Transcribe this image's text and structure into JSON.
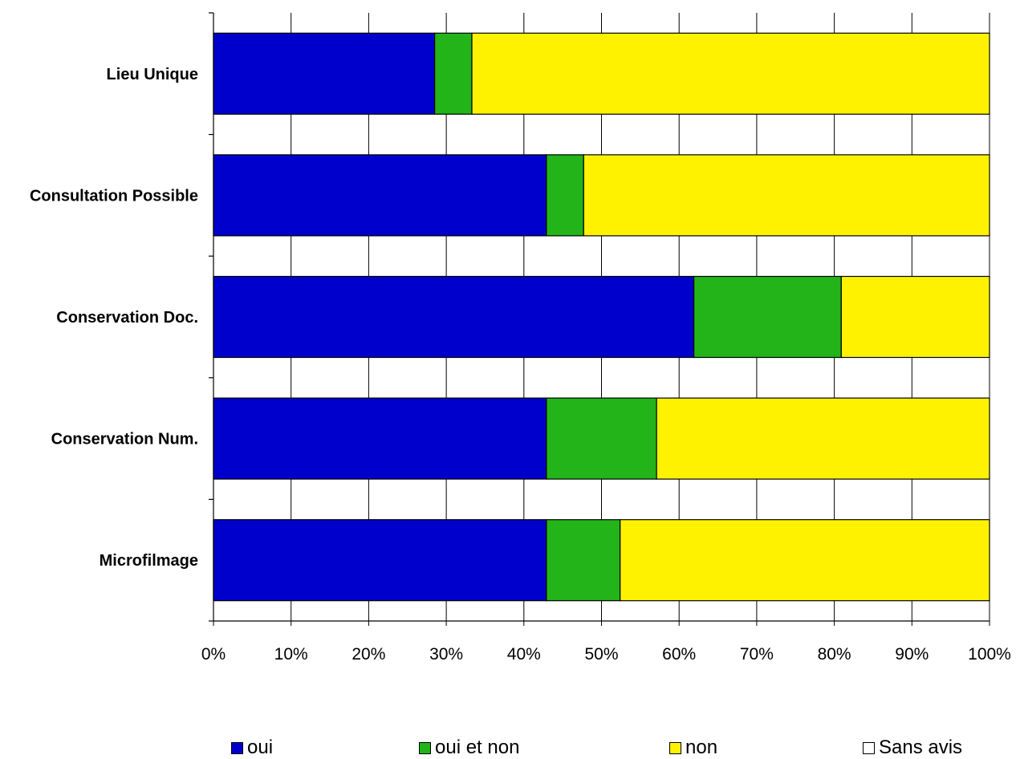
{
  "chart_data": {
    "type": "bar",
    "orientation": "horizontal",
    "stacked": "percent",
    "categories": [
      "Lieu Unique",
      "Consultation Possible",
      "Conservation Doc.",
      "Conservation Num.",
      "Microfilmage"
    ],
    "series": [
      {
        "name": "oui",
        "color": "#0000CC",
        "values": [
          28.5,
          42.9,
          61.9,
          42.9,
          42.9
        ]
      },
      {
        "name": "oui et non",
        "color": "#22B418",
        "values": [
          4.8,
          4.8,
          19.0,
          14.2,
          9.5
        ]
      },
      {
        "name": "non",
        "color": "#FFF200",
        "values": [
          66.7,
          52.3,
          19.1,
          42.9,
          47.6
        ]
      },
      {
        "name": "Sans avis",
        "color": "#FFFFFF",
        "values": [
          0,
          0,
          0,
          0,
          0
        ]
      }
    ],
    "xticks": [
      "0%",
      "10%",
      "20%",
      "30%",
      "40%",
      "50%",
      "60%",
      "70%",
      "80%",
      "90%",
      "100%"
    ],
    "xlim": [
      0,
      100
    ],
    "grid": "vertical",
    "legend_position": "bottom"
  }
}
